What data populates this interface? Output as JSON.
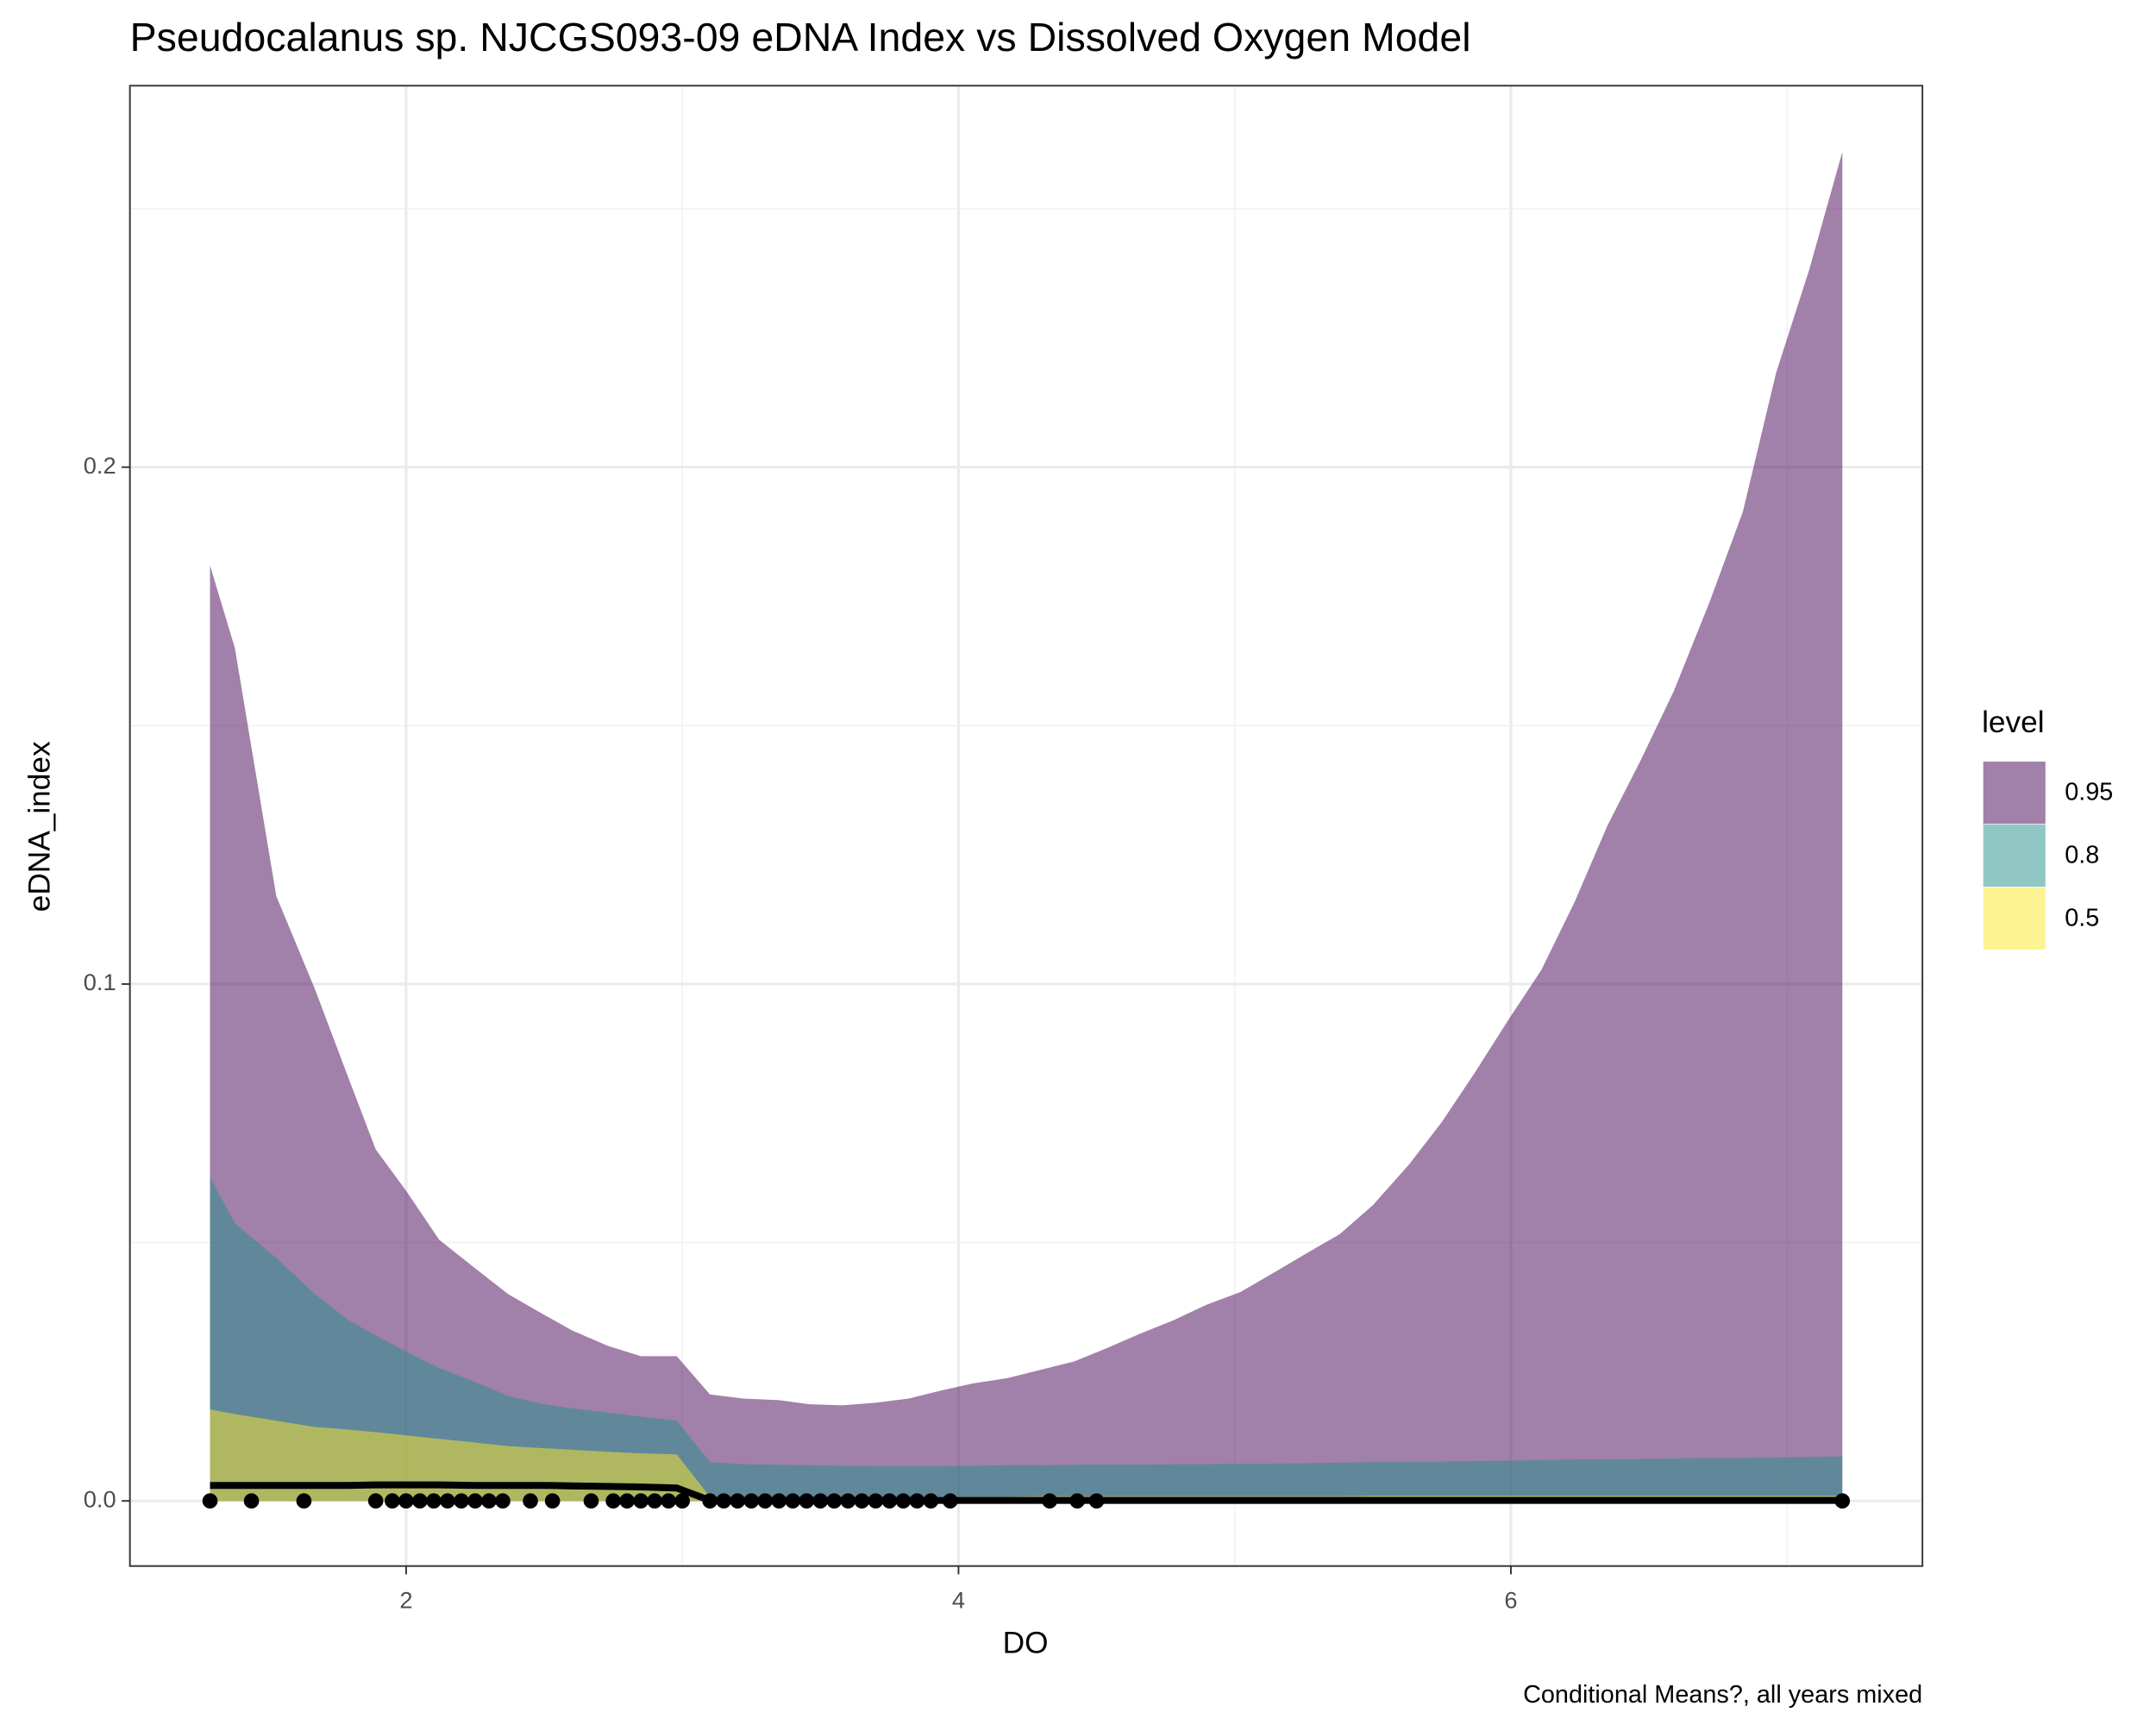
{
  "chart_data": {
    "type": "area",
    "title": "Pseudocalanus sp. NJCGS093-09 eDNA Index vs Dissolved Oxygen Model",
    "caption": "Conditional Means?, all years mixed",
    "xlabel": "DO",
    "ylabel": "eDNA_index",
    "legend_title": "level",
    "legend_position": "right",
    "grid": true,
    "fill_alpha": 0.5,
    "xlim": [
      1.0,
      7.49
    ],
    "ylim": [
      -0.0126,
      0.2738
    ],
    "xticks": [
      2,
      4,
      6
    ],
    "yticks": [
      {
        "value": 0,
        "label": "0.0"
      },
      {
        "value": 0.1,
        "label": "0.1"
      },
      {
        "value": 0.2,
        "label": "0.2"
      }
    ],
    "x_minor_ticks": [
      3,
      5,
      7
    ],
    "y_minor_ticks": [
      0.05,
      0.15,
      0.25
    ],
    "x": [
      1.29,
      1.38,
      1.53,
      1.67,
      1.79,
      1.89,
      2.0,
      2.12,
      2.25,
      2.37,
      2.5,
      2.6,
      2.73,
      2.85,
      2.98,
      3.1,
      3.22,
      3.35,
      3.46,
      3.58,
      3.7,
      3.82,
      3.94,
      4.05,
      4.18,
      4.3,
      4.42,
      4.53,
      4.66,
      4.78,
      4.9,
      5.02,
      5.14,
      5.26,
      5.38,
      5.5,
      5.63,
      5.75,
      5.87,
      5.99,
      6.11,
      6.23,
      6.35,
      6.47,
      6.59,
      6.72,
      6.84,
      6.96,
      7.08,
      7.2
    ],
    "series": [
      {
        "name": "0.95",
        "color": "#440154",
        "values": [
          0.181,
          0.165,
          0.117,
          0.099,
          0.082,
          0.068,
          0.06,
          0.0505,
          0.045,
          0.04,
          0.036,
          0.033,
          0.03,
          0.028,
          0.028,
          0.0206,
          0.0198,
          0.0195,
          0.0187,
          0.0185,
          0.019,
          0.0198,
          0.0214,
          0.0227,
          0.0238,
          0.0254,
          0.027,
          0.0294,
          0.0324,
          0.035,
          0.038,
          0.0404,
          0.0441,
          0.0479,
          0.0516,
          0.0572,
          0.065,
          0.0733,
          0.0829,
          0.093,
          0.1027,
          0.1158,
          0.1307,
          0.1433,
          0.1567,
          0.174,
          0.1914,
          0.2182,
          0.2382,
          0.261
        ]
      },
      {
        "name": "0.8",
        "color": "#21908c",
        "values": [
          0.0626,
          0.0537,
          0.047,
          0.04,
          0.035,
          0.032,
          0.0289,
          0.0257,
          0.023,
          0.0203,
          0.0187,
          0.0179,
          0.0171,
          0.0163,
          0.0155,
          0.0075,
          0.0071,
          0.007,
          0.0069,
          0.0068,
          0.0067,
          0.0067,
          0.0067,
          0.0068,
          0.0069,
          0.0069,
          0.007,
          0.007,
          0.007,
          0.0071,
          0.0071,
          0.0072,
          0.0072,
          0.0073,
          0.0074,
          0.0075,
          0.0075,
          0.0076,
          0.0077,
          0.0078,
          0.0079,
          0.008,
          0.008,
          0.0081,
          0.0082,
          0.0083,
          0.0083,
          0.0084,
          0.0085,
          0.0086
        ]
      },
      {
        "name": "0.5",
        "color": "#fde725",
        "values": [
          0.0177,
          0.0168,
          0.0155,
          0.0143,
          0.0138,
          0.0133,
          0.0127,
          0.012,
          0.0113,
          0.0106,
          0.0102,
          0.0099,
          0.0095,
          0.0092,
          0.009,
          0.0008,
          0.0008,
          0.0008,
          0.0008,
          0.0008,
          0.0008,
          0.0008,
          0.0008,
          0.0008,
          0.0008,
          0.0009,
          0.0009,
          0.0009,
          0.0009,
          0.0009,
          0.0009,
          0.0009,
          0.0009,
          0.0009,
          0.0009,
          0.001,
          0.001,
          0.001,
          0.001,
          0.001,
          0.001,
          0.001,
          0.001,
          0.001,
          0.001,
          0.001,
          0.001,
          0.001,
          0.001,
          0.001
        ]
      }
    ],
    "mean_line": {
      "color": "#000000",
      "values": [
        0.003,
        0.003,
        0.003,
        0.003,
        0.003,
        0.0031,
        0.0031,
        0.0031,
        0.003,
        0.003,
        0.003,
        0.0029,
        0.0028,
        0.0027,
        0.0025,
        0.0001,
        0.0001,
        0.0001,
        0.0001,
        0.0001,
        0.0001,
        0.0001,
        0.0001,
        0.0001,
        0.0001,
        0.0001,
        0.0001,
        0.0001,
        0.0001,
        0.0001,
        0.0001,
        0.0001,
        0.0001,
        0.0001,
        0.0001,
        0.0001,
        0.0001,
        0.0001,
        0.0001,
        0.0001,
        0.0001,
        0.0001,
        0.0001,
        0.0001,
        0.0001,
        0.0001,
        0.0001,
        0.0001,
        0.0001,
        0.0001
      ]
    },
    "observations": {
      "color": "#000000",
      "x": [
        1.29,
        1.44,
        1.63,
        1.89,
        1.95,
        2.0,
        2.05,
        2.1,
        2.15,
        2.2,
        2.25,
        2.3,
        2.35,
        2.45,
        2.53,
        2.67,
        2.75,
        2.8,
        2.85,
        2.9,
        2.95,
        3.0,
        3.1,
        3.15,
        3.2,
        3.25,
        3.3,
        3.35,
        3.4,
        3.45,
        3.5,
        3.55,
        3.6,
        3.65,
        3.7,
        3.75,
        3.8,
        3.85,
        3.9,
        3.97,
        4.33,
        4.43,
        4.5,
        7.2
      ],
      "y": [
        0,
        0,
        0,
        0,
        0,
        0,
        0,
        0,
        0,
        0,
        0,
        0,
        0,
        0,
        0,
        0,
        0,
        0,
        0,
        0,
        0,
        0,
        0,
        0,
        0,
        0,
        0,
        0,
        0,
        0,
        0,
        0,
        0,
        0,
        0,
        0,
        0,
        0,
        0,
        0,
        0,
        0,
        0,
        0
      ]
    }
  }
}
